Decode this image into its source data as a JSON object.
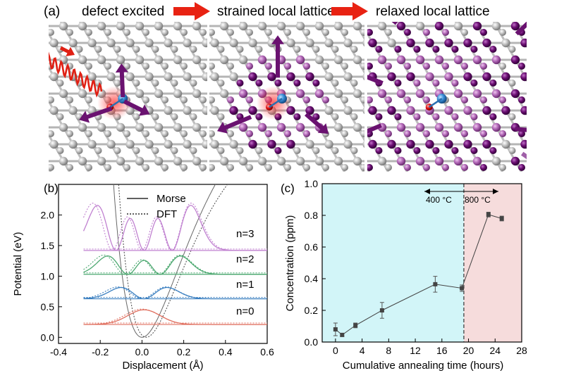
{
  "panel_a": {
    "label": "(a)",
    "steps": [
      "defect excited",
      "strained local lattice",
      "relaxed local lattice"
    ]
  },
  "colors": {
    "atom": "#c4c4c4",
    "bond": "#b0b0b0",
    "purple_light": "#b36ab8",
    "purple_dark": "#6b0f72",
    "arrow": "#6a1270",
    "red_arrow": "#e02014",
    "defect_blue": "#3a8fd8",
    "defect_red": "#e01010",
    "shade_400": "#d2f5f8",
    "shade_800": "#f6dcdc",
    "morse_red": "#e07060",
    "morse_blue": "#3a7fc0",
    "morse_green": "#4ca870",
    "morse_purple": "#c080d0"
  },
  "chart_data": [
    {
      "type": "line",
      "label": "(b)",
      "xlabel": "Displacement (Å)",
      "ylabel": "Potential (eV)",
      "xlim": [
        -0.4,
        0.6
      ],
      "ylim": [
        -0.1,
        2.5
      ],
      "xticks": [
        "-0.4",
        "-0.2",
        "0.0",
        "0.2",
        "0.4",
        "0.6"
      ],
      "yticks": [
        "0.0",
        "0.5",
        "1.0",
        "1.5",
        "2.0"
      ],
      "legend": [
        {
          "name": "Morse",
          "style": "solid"
        },
        {
          "name": "DFT",
          "style": "dotted"
        }
      ],
      "levels": [
        {
          "name": "n=0",
          "energy": 0.21
        },
        {
          "name": "n=1",
          "energy": 0.63
        },
        {
          "name": "n=2",
          "energy": 1.03
        },
        {
          "name": "n=3",
          "energy": 1.42
        }
      ]
    },
    {
      "type": "line",
      "label": "(c)",
      "xlabel": "Cumulative annealing time (hours)",
      "ylabel": "Concentration (ppm)",
      "xlim": [
        -2,
        28
      ],
      "ylim": [
        0,
        1.0
      ],
      "xticks": [
        "0",
        "4",
        "8",
        "12",
        "16",
        "20",
        "24",
        "28"
      ],
      "yticks": [
        "0.0",
        "0.2",
        "0.4",
        "0.6",
        "0.8",
        "1.0"
      ],
      "boundary_x": 19.3,
      "region_labels": [
        "400 °C",
        "800 °C"
      ],
      "series": [
        {
          "name": "Concentration",
          "x": [
            0,
            1,
            3,
            7,
            15,
            19,
            23,
            25
          ],
          "y": [
            0.08,
            0.045,
            0.105,
            0.2,
            0.365,
            0.34,
            0.805,
            0.78
          ],
          "err": [
            0.04,
            0.01,
            0.015,
            0.05,
            0.05,
            0.02,
            0.015,
            0.015
          ]
        }
      ]
    }
  ]
}
